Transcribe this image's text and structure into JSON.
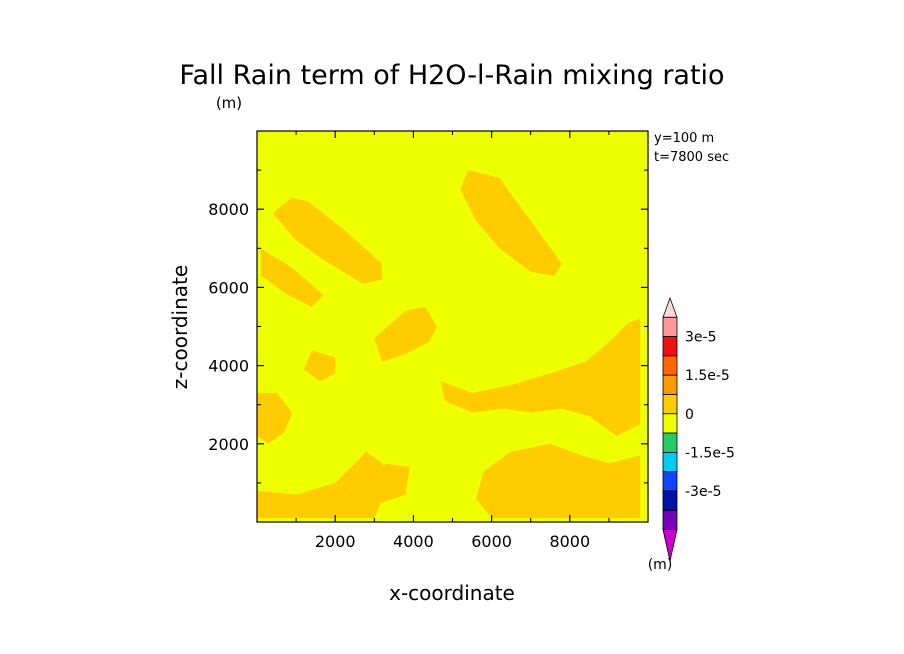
{
  "chart_data": {
    "type": "heatmap",
    "title": "Fall Rain term of H2O-l-Rain mixing ratio",
    "title_unit": "(m)",
    "xlabel": "x-coordinate",
    "ylabel": "z-coordinate",
    "xlim": [
      0,
      10000
    ],
    "ylim": [
      0,
      10000
    ],
    "x_ticks": [
      2000,
      4000,
      6000,
      8000
    ],
    "y_ticks": [
      2000,
      4000,
      6000,
      8000
    ],
    "x_tick_labels": [
      "2000",
      "4000",
      "6000",
      "8000"
    ],
    "y_tick_labels": [
      "2000",
      "4000",
      "6000",
      "8000"
    ],
    "annotations": [
      "y=100 m",
      "t=7800 sec"
    ],
    "background_color": "#eeff00",
    "regions": [
      {
        "level": "0 to 7.5e-6",
        "color": "#ffcc00",
        "points": [
          [
            900,
            8300
          ],
          [
            1300,
            8200
          ],
          [
            2200,
            7500
          ],
          [
            3200,
            6600
          ],
          [
            3200,
            6200
          ],
          [
            2700,
            6100
          ],
          [
            1700,
            6700
          ],
          [
            1000,
            7200
          ],
          [
            400,
            7900
          ]
        ]
      },
      {
        "level": "0 to 7.5e-6",
        "color": "#ffcc00",
        "points": [
          [
            5400,
            9000
          ],
          [
            6200,
            8800
          ],
          [
            7000,
            7700
          ],
          [
            7800,
            6600
          ],
          [
            7600,
            6300
          ],
          [
            7000,
            6400
          ],
          [
            6200,
            7000
          ],
          [
            5600,
            7700
          ],
          [
            5200,
            8500
          ]
        ]
      },
      {
        "level": "0 to 7.5e-6",
        "color": "#ffcc00",
        "points": [
          [
            100,
            7000
          ],
          [
            900,
            6500
          ],
          [
            1700,
            5800
          ],
          [
            1400,
            5500
          ],
          [
            800,
            5800
          ],
          [
            100,
            6300
          ]
        ]
      },
      {
        "level": "0 to 7.5e-6",
        "color": "#ffcc00",
        "points": [
          [
            3000,
            4700
          ],
          [
            3800,
            5400
          ],
          [
            4300,
            5500
          ],
          [
            4600,
            5000
          ],
          [
            4400,
            4600
          ],
          [
            3800,
            4300
          ],
          [
            3200,
            4100
          ]
        ]
      },
      {
        "level": "0 to 7.5e-6",
        "color": "#ffcc00",
        "points": [
          [
            4700,
            3600
          ],
          [
            5500,
            3300
          ],
          [
            6500,
            3500
          ],
          [
            7500,
            3800
          ],
          [
            8400,
            4100
          ],
          [
            9000,
            4600
          ],
          [
            9500,
            5100
          ],
          [
            9800,
            5200
          ],
          [
            9800,
            2500
          ],
          [
            9200,
            2200
          ],
          [
            8500,
            2700
          ],
          [
            7800,
            2900
          ],
          [
            7000,
            2800
          ],
          [
            6300,
            2900
          ],
          [
            5500,
            2800
          ],
          [
            4800,
            3100
          ]
        ]
      },
      {
        "level": "0 to 7.5e-6",
        "color": "#ffcc00",
        "points": [
          [
            0,
            3300
          ],
          [
            500,
            3300
          ],
          [
            900,
            2800
          ],
          [
            700,
            2300
          ],
          [
            300,
            2000
          ],
          [
            0,
            2200
          ]
        ]
      },
      {
        "level": "0 to 7.5e-6",
        "color": "#ffcc00",
        "points": [
          [
            0,
            800
          ],
          [
            1000,
            700
          ],
          [
            2000,
            1000
          ],
          [
            2800,
            1800
          ],
          [
            3200,
            1500
          ],
          [
            3300,
            800
          ],
          [
            3000,
            100
          ],
          [
            0,
            100
          ]
        ]
      },
      {
        "level": "0 to 7.5e-6",
        "color": "#ffcc00",
        "points": [
          [
            5800,
            1300
          ],
          [
            6500,
            1800
          ],
          [
            7500,
            2000
          ],
          [
            8300,
            1700
          ],
          [
            9000,
            1500
          ],
          [
            9800,
            1700
          ],
          [
            9800,
            100
          ],
          [
            6000,
            100
          ],
          [
            5600,
            600
          ]
        ]
      },
      {
        "level": "0 to 7.5e-6",
        "color": "#ffcc00",
        "points": [
          [
            1400,
            4400
          ],
          [
            2000,
            4200
          ],
          [
            2000,
            3800
          ],
          [
            1600,
            3600
          ],
          [
            1200,
            3900
          ]
        ]
      },
      {
        "level": "0 to 7.5e-6",
        "color": "#ffcc00",
        "points": [
          [
            2600,
            1000
          ],
          [
            3300,
            1500
          ],
          [
            3900,
            1400
          ],
          [
            3800,
            700
          ],
          [
            3200,
            500
          ]
        ]
      }
    ],
    "colorbar": {
      "unit": "(m)",
      "tick_labels": [
        "3e-5",
        "1.5e-5",
        "0",
        "-1.5e-5",
        "-3e-5"
      ],
      "levels": [
        {
          "upper": "top",
          "color": "#ffd8d8"
        },
        {
          "upper": "3e-5",
          "color": "#ff9999"
        },
        {
          "upper": "2.25e-5",
          "color": "#ee1111"
        },
        {
          "upper": "1.5e-5",
          "color": "#ff6600"
        },
        {
          "upper": "7.5e-6",
          "color": "#ff9900"
        },
        {
          "upper": "0",
          "color": "#ffcc00"
        },
        {
          "upper": "-7.5e-6",
          "color": "#eeff00"
        },
        {
          "upper": "-1.5e-5",
          "color": "#22cc66"
        },
        {
          "upper": "-2.25e-5",
          "color": "#00ccee"
        },
        {
          "upper": "-3e-5",
          "color": "#1144ff"
        },
        {
          "upper": "low1",
          "color": "#0011aa"
        },
        {
          "upper": "low2",
          "color": "#7700bb"
        },
        {
          "upper": "low3",
          "color": "#cc00cc"
        }
      ]
    }
  }
}
